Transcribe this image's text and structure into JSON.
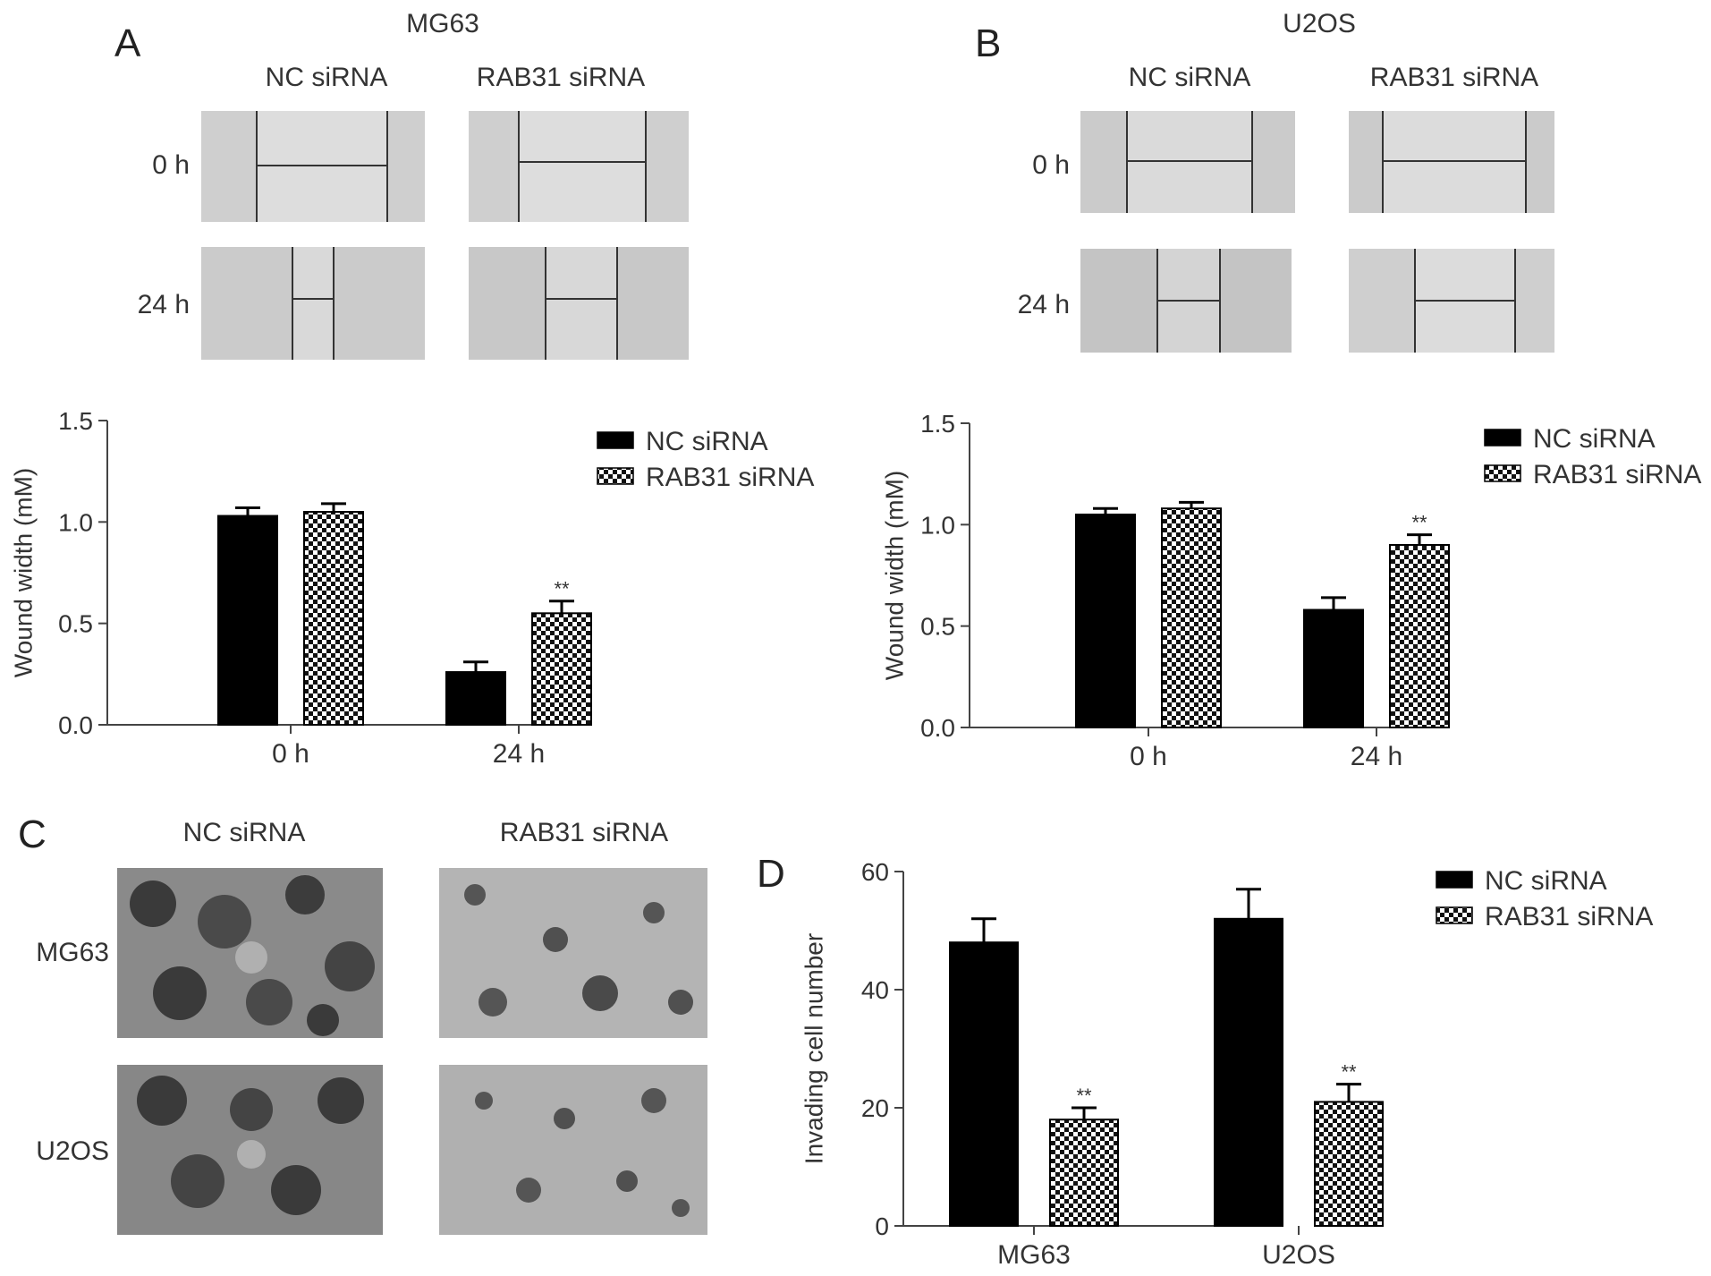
{
  "panels": {
    "A": {
      "letter": "A",
      "cell_line": "MG63",
      "col_labels": [
        "NC siRNA",
        "RAB31 siRNA"
      ],
      "row_labels": [
        "0 h",
        "24 h"
      ]
    },
    "B": {
      "letter": "B",
      "cell_line": "U2OS",
      "col_labels": [
        "NC siRNA",
        "RAB31 siRNA"
      ],
      "row_labels": [
        "0 h",
        "24 h"
      ]
    },
    "C": {
      "letter": "C",
      "col_labels": [
        "NC siRNA",
        "RAB31 siRNA"
      ],
      "row_labels": [
        "MG63",
        "U2OS"
      ]
    },
    "D": {
      "letter": "D"
    }
  },
  "chart_data": [
    {
      "type": "bar",
      "categories": [
        "0 h",
        "24 h"
      ],
      "series": [
        {
          "name": "NC siRNA",
          "values": [
            1.03,
            0.26
          ],
          "errors": [
            0.04,
            0.05
          ]
        },
        {
          "name": "RAB31 siRNA",
          "values": [
            1.05,
            0.55
          ],
          "errors": [
            0.04,
            0.06
          ]
        }
      ],
      "annotations": [
        "",
        "**"
      ],
      "ylabel": "Wound width (mM)",
      "ylim": [
        0,
        1.5
      ],
      "yticks": [
        "0.0",
        "0.5",
        "1.0",
        "1.5"
      ],
      "legend": "right"
    },
    {
      "type": "bar",
      "categories": [
        "0 h",
        "24 h"
      ],
      "series": [
        {
          "name": "NC siRNA",
          "values": [
            1.05,
            0.58
          ],
          "errors": [
            0.03,
            0.06
          ]
        },
        {
          "name": "RAB31 siRNA",
          "values": [
            1.08,
            0.9
          ],
          "errors": [
            0.03,
            0.05
          ]
        }
      ],
      "annotations": [
        "",
        "**"
      ],
      "ylabel": "Wound width (mM)",
      "ylim": [
        0,
        1.5
      ],
      "yticks": [
        "0.0",
        "0.5",
        "1.0",
        "1.5"
      ],
      "legend": "right"
    },
    {
      "type": "bar",
      "categories": [
        "MG63",
        "U2OS"
      ],
      "series": [
        {
          "name": "NC siRNA",
          "values": [
            48,
            52
          ],
          "errors": [
            4,
            5
          ]
        },
        {
          "name": "RAB31 siRNA",
          "values": [
            18,
            21
          ],
          "errors": [
            2,
            3
          ]
        }
      ],
      "annotations": [
        "**",
        "**"
      ],
      "ylabel": "Invading cell number",
      "ylim": [
        0,
        60
      ],
      "yticks": [
        "0",
        "20",
        "40",
        "60"
      ],
      "legend": "right"
    }
  ]
}
